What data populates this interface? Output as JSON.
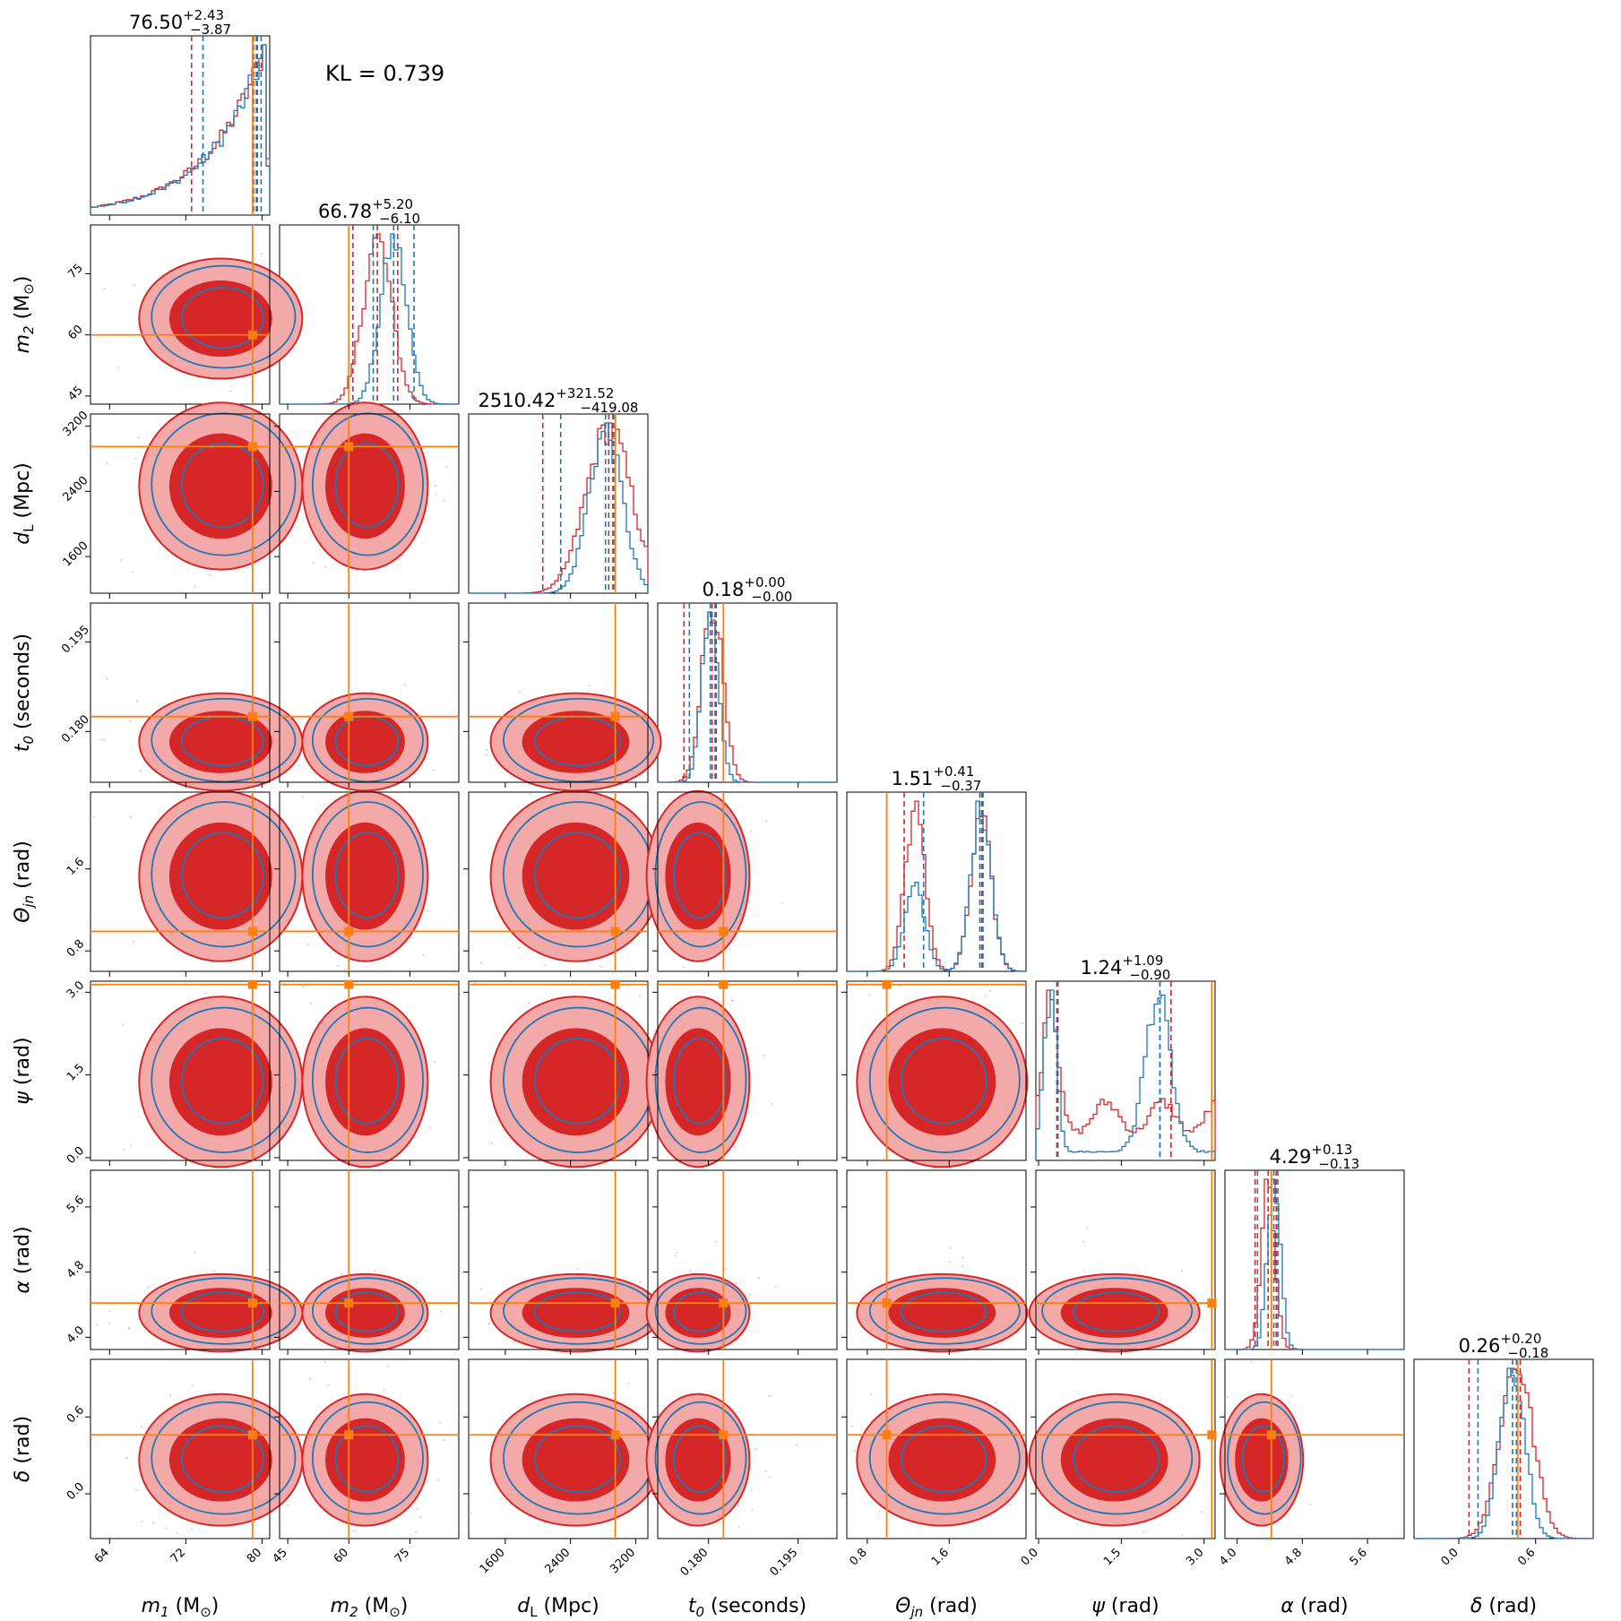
{
  "chart_data": {
    "type": "corner",
    "kl_label": "KL = 0.739",
    "colors": {
      "run_a": "#d62728",
      "run_b": "#1f77b4",
      "truth": "#ff7f0e"
    },
    "parameters": [
      {
        "id": "m1",
        "symbol": "m",
        "sub": "1",
        "unit": "(M",
        "unit_sub": "⊙",
        "unit_end": ")",
        "range": [
          62,
          80.8
        ],
        "ticks": [
          64,
          72,
          80
        ],
        "tick_labels": [
          "64",
          "72",
          "80"
        ],
        "truth": 79,
        "title": {
          "median": "76.50",
          "plus": "+2.43",
          "minus": "−3.87"
        },
        "q_a": [
          72.6,
          79.1,
          79.5
        ],
        "q_b": [
          73.8,
          79.4,
          79.9
        ]
      },
      {
        "id": "m2",
        "symbol": "m",
        "sub": "2",
        "unit": "(M",
        "unit_sub": "⊙",
        "unit_end": ")",
        "range": [
          43,
          87
        ],
        "ticks": [
          45,
          60,
          75
        ],
        "tick_labels": [
          "45",
          "60",
          "75"
        ],
        "truth": 60,
        "title": {
          "median": "66.78",
          "plus": "+5.20",
          "minus": "−6.10"
        },
        "q_a": [
          61,
          67,
          72
        ],
        "q_b": [
          66,
          71,
          76
        ]
      },
      {
        "id": "dL",
        "symbol": "d",
        "sub": "L",
        "unit": "(Mpc",
        "unit_sub": "",
        "unit_end": ")",
        "range": [
          1150,
          3350
        ],
        "ticks": [
          1600,
          2400,
          3200
        ],
        "tick_labels": [
          "1600",
          "2400",
          "3200"
        ],
        "truth": 2950,
        "title": {
          "median": "2510.42",
          "plus": "+321.52",
          "minus": "−419.08"
        },
        "q_a": [
          2060,
          2870,
          2930
        ],
        "q_b": [
          2280,
          2830,
          2920
        ]
      },
      {
        "id": "t0",
        "symbol": "t",
        "sub": "0",
        "unit": "(seconds",
        "unit_sub": "",
        "unit_end": ")",
        "range": [
          0.1715,
          0.2015
        ],
        "ticks": [
          0.18,
          0.195
        ],
        "tick_labels": [
          "0.180",
          "0.195"
        ],
        "truth": 0.1825,
        "title": {
          "median": "0.18",
          "plus": "+0.00",
          "minus": "−0.00"
        },
        "q_a": [
          0.1759,
          0.1806,
          0.1813
        ],
        "q_b": [
          0.1768,
          0.1803,
          0.1811
        ]
      },
      {
        "id": "theta",
        "symbol": "Θ",
        "sub": "jn",
        "unit": "(rad",
        "unit_sub": "",
        "unit_end": ")",
        "range": [
          0.6,
          2.35
        ],
        "ticks": [
          0.8,
          1.6
        ],
        "tick_labels": [
          "0.8",
          "1.6"
        ],
        "truth": 0.99,
        "title": {
          "median": "1.51",
          "plus": "+0.41",
          "minus": "−0.37"
        },
        "q_a": [
          1.16,
          1.9,
          1.92
        ],
        "q_b": [
          1.35,
          1.9,
          1.93
        ]
      },
      {
        "id": "psi",
        "symbol": "ψ",
        "sub": "",
        "unit": "(rad",
        "unit_sub": "",
        "unit_end": ")",
        "range": [
          -0.05,
          3.2
        ],
        "ticks": [
          0,
          1.5,
          3.0
        ],
        "tick_labels": [
          "0.0",
          "1.5",
          "3.0"
        ],
        "truth": 3.14,
        "title": {
          "median": "1.24",
          "plus": "+1.09",
          "minus": "−0.90"
        },
        "q_a": [
          0.35,
          2.4,
          2.4
        ],
        "q_b": [
          0.33,
          2.2,
          2.2
        ]
      },
      {
        "id": "alpha",
        "symbol": "α",
        "sub": "",
        "unit": "(rad",
        "unit_sub": "",
        "unit_end": ")",
        "range": [
          3.85,
          6.05
        ],
        "ticks": [
          4.0,
          4.8,
          5.6
        ],
        "tick_labels": [
          "4.0",
          "4.8",
          "5.6"
        ],
        "truth": 4.42,
        "title": {
          "median": "4.29",
          "plus": "+0.13",
          "minus": "−0.13"
        },
        "q_a": [
          4.22,
          4.38,
          4.48
        ],
        "q_b": [
          4.25,
          4.45,
          4.5
        ]
      },
      {
        "id": "delta",
        "symbol": "δ",
        "sub": "",
        "unit": "(rad",
        "unit_sub": "",
        "unit_end": ")",
        "range": [
          -0.35,
          1.05
        ],
        "ticks": [
          0.0,
          0.6
        ],
        "tick_labels": [
          "0.0",
          "0.6"
        ],
        "truth": 0.46,
        "title": {
          "median": "0.26",
          "plus": "+0.20",
          "minus": "−0.18"
        },
        "q_a": [
          0.08,
          0.45,
          0.48
        ],
        "q_b": [
          0.15,
          0.42,
          0.45
        ]
      }
    ]
  }
}
